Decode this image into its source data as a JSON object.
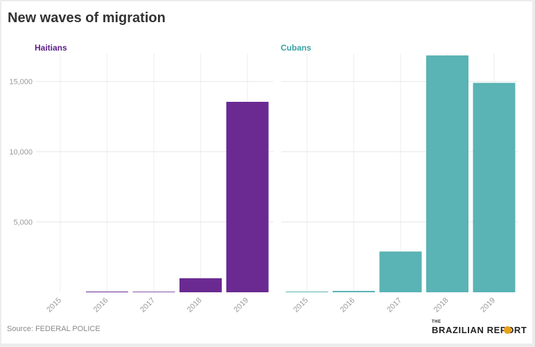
{
  "title": "New waves of migration",
  "source": "Source: FEDERAL POLICE",
  "logo": {
    "the": "THE",
    "name": "BRAZILIAN REPORT",
    "accent_color": "#e8a21f"
  },
  "chart_data": [
    {
      "type": "bar",
      "title": "Haitians",
      "color": "#6a2a92",
      "title_color": "#5b2089",
      "categories": [
        "2015",
        "2016",
        "2017",
        "2018",
        "2019"
      ],
      "values": [
        0,
        50,
        40,
        1000,
        13550
      ],
      "ylim": [
        0,
        17000
      ],
      "yticks": [
        5000,
        10000,
        15000
      ],
      "ytick_labels": [
        "5,000",
        "10,000",
        "15,000"
      ],
      "xlabel": "",
      "ylabel": ""
    },
    {
      "type": "bar",
      "title": "Cubans",
      "color": "#5ab3b4",
      "title_color": "#3aa2a4",
      "categories": [
        "2015",
        "2016",
        "2017",
        "2018",
        "2019"
      ],
      "values": [
        50,
        100,
        2900,
        16850,
        14900
      ],
      "ylim": [
        0,
        17000
      ],
      "yticks": [
        5000,
        10000,
        15000
      ],
      "ytick_labels": [
        "5,000",
        "10,000",
        "15,000"
      ],
      "xlabel": "",
      "ylabel": ""
    }
  ]
}
